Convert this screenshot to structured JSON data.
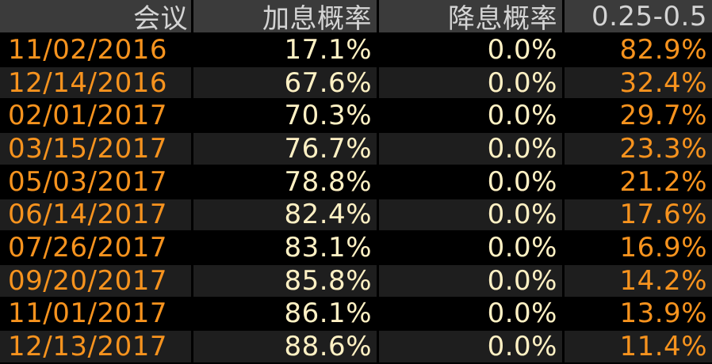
{
  "table": {
    "header": [
      "会议",
      "加息概率",
      "降息概率",
      "0.25-0.5"
    ],
    "rows": [
      [
        "11/02/2016",
        "17.1%",
        "0.0%",
        "82.9%"
      ],
      [
        "12/14/2016",
        "67.6%",
        "0.0%",
        "32.4%"
      ],
      [
        "02/01/2017",
        "70.3%",
        "0.0%",
        "29.7%"
      ],
      [
        "03/15/2017",
        "76.7%",
        "0.0%",
        "23.3%"
      ],
      [
        "05/03/2017",
        "78.8%",
        "0.0%",
        "21.2%"
      ],
      [
        "06/14/2017",
        "82.4%",
        "0.0%",
        "17.6%"
      ],
      [
        "07/26/2017",
        "83.1%",
        "0.0%",
        "16.9%"
      ],
      [
        "09/20/2017",
        "85.8%",
        "0.0%",
        "14.2%"
      ],
      [
        "11/01/2017",
        "86.1%",
        "0.0%",
        "13.9%"
      ],
      [
        "12/13/2017",
        "88.6%",
        "0.0%",
        "11.4%"
      ]
    ]
  }
}
